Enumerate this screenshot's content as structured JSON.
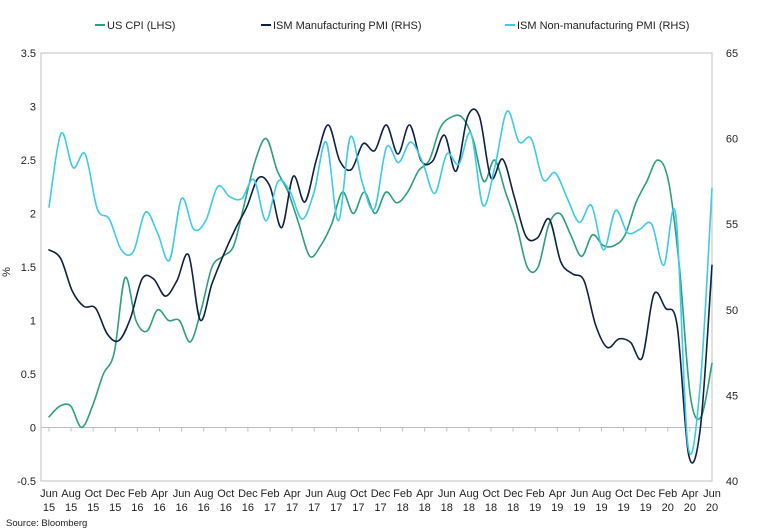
{
  "chart_data": {
    "type": "line",
    "title": "",
    "source": "Source: Bloomberg",
    "ylabel_left": "%",
    "left_axis": {
      "min": -0.5,
      "max": 3.5,
      "ticks": [
        "-0.5",
        "0",
        "0.5",
        "1",
        "1.5",
        "2",
        "2.5",
        "3",
        "3.5"
      ]
    },
    "right_axis": {
      "min": 40,
      "max": 65,
      "ticks": [
        "40",
        "45",
        "50",
        "55",
        "60",
        "65"
      ]
    },
    "x_ticks": [
      {
        "month": "Jun",
        "year": "15"
      },
      {
        "month": "Aug",
        "year": "15"
      },
      {
        "month": "Oct",
        "year": "15"
      },
      {
        "month": "Dec",
        "year": "15"
      },
      {
        "month": "Feb",
        "year": "16"
      },
      {
        "month": "Apr",
        "year": "16"
      },
      {
        "month": "Jun",
        "year": "16"
      },
      {
        "month": "Aug",
        "year": "16"
      },
      {
        "month": "Oct",
        "year": "16"
      },
      {
        "month": "Dec",
        "year": "16"
      },
      {
        "month": "Feb",
        "year": "17"
      },
      {
        "month": "Apr",
        "year": "17"
      },
      {
        "month": "Jun",
        "year": "17"
      },
      {
        "month": "Aug",
        "year": "17"
      },
      {
        "month": "Oct",
        "year": "17"
      },
      {
        "month": "Dec",
        "year": "17"
      },
      {
        "month": "Feb",
        "year": "18"
      },
      {
        "month": "Apr",
        "year": "18"
      },
      {
        "month": "Jun",
        "year": "18"
      },
      {
        "month": "Aug",
        "year": "18"
      },
      {
        "month": "Oct",
        "year": "18"
      },
      {
        "month": "Dec",
        "year": "18"
      },
      {
        "month": "Feb",
        "year": "19"
      },
      {
        "month": "Apr",
        "year": "19"
      },
      {
        "month": "Jun",
        "year": "19"
      },
      {
        "month": "Aug",
        "year": "19"
      },
      {
        "month": "Oct",
        "year": "19"
      },
      {
        "month": "Dec",
        "year": "19"
      },
      {
        "month": "Feb",
        "year": "20"
      },
      {
        "month": "Apr",
        "year": "20"
      },
      {
        "month": "Jun",
        "year": "20"
      }
    ],
    "series": [
      {
        "name": "US CPI (LHS)",
        "axis": "left",
        "color": "#2e9e7e",
        "values": [
          0.1,
          0.2,
          0.2,
          0.0,
          0.2,
          0.5,
          0.7,
          1.4,
          1.0,
          0.9,
          1.1,
          1.0,
          1.0,
          0.8,
          1.1,
          1.5,
          1.6,
          1.7,
          2.1,
          2.5,
          2.7,
          2.4,
          2.2,
          1.9,
          1.6,
          1.7,
          1.9,
          2.2,
          2.0,
          2.2,
          2.0,
          2.2,
          2.1,
          2.2,
          2.4,
          2.5,
          2.8,
          2.9,
          2.9,
          2.7,
          2.3,
          2.5,
          2.2,
          1.9,
          1.5,
          1.5,
          1.9,
          2.0,
          1.8,
          1.6,
          1.8,
          1.7,
          1.7,
          1.8,
          2.1,
          2.3,
          2.5,
          2.3,
          1.5,
          0.3,
          0.1,
          0.6
        ]
      },
      {
        "name": "ISM Manufacturing PMI (RHS)",
        "axis": "right",
        "color": "#0d2145",
        "values": [
          53.5,
          53.0,
          51.1,
          50.2,
          50.1,
          48.6,
          48.2,
          49.5,
          51.8,
          51.8,
          50.8,
          51.7,
          53.2,
          49.4,
          51.5,
          53.2,
          54.7,
          56.0,
          57.7,
          57.2,
          54.8,
          57.8,
          56.3,
          58.8,
          60.8,
          58.7,
          58.2,
          59.7,
          59.3,
          60.8,
          59.1,
          60.8,
          58.7,
          58.7,
          60.2,
          58.1,
          61.3,
          61.3,
          57.7,
          58.8,
          56.6,
          54.3,
          54.2,
          55.3,
          52.8,
          52.1,
          51.7,
          49.1,
          47.8,
          48.3,
          48.1,
          47.2,
          50.9,
          50.1,
          49.1,
          41.5,
          43.1,
          52.6
        ]
      },
      {
        "name": "ISM Non-manufacturing PMI (RHS)",
        "axis": "right",
        "color": "#3ccbe8",
        "values": [
          56.0,
          60.3,
          58.3,
          59.1,
          55.9,
          55.3,
          53.5,
          53.4,
          55.7,
          54.5,
          52.9,
          56.5,
          54.7,
          55.2,
          57.2,
          56.6,
          56.5,
          57.6,
          55.2,
          57.5,
          56.9,
          55.3,
          56.9,
          59.8,
          55.2,
          60.1,
          57.4,
          55.9,
          59.5,
          58.6,
          59.8,
          58.6,
          56.8,
          59.1,
          58.5,
          60.3,
          56.1,
          58.4,
          61.6,
          59.8,
          60.0,
          57.6,
          58.0,
          56.5,
          55.1,
          56.1,
          53.5,
          55.8,
          54.5,
          54.7,
          55.0,
          52.6,
          55.5,
          42.1,
          45.4,
          57.1
        ]
      }
    ]
  }
}
